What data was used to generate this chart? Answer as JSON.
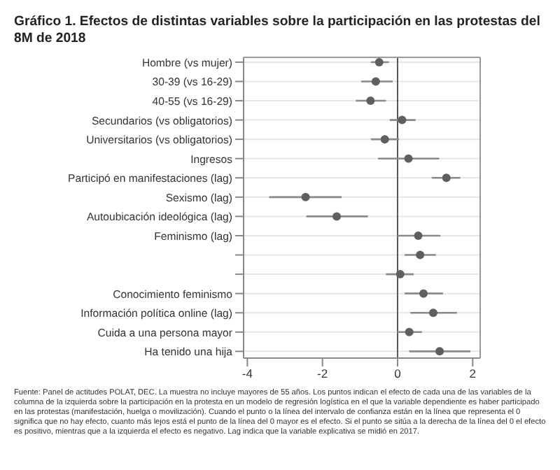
{
  "chart_data": {
    "type": "scatter",
    "title": "Gráfico 1. Efectos de distintas variables sobre la participación en las protestas del 8M de 2018",
    "orientation": "horizontal",
    "categories": [
      "Hombre (vs mujer)",
      "30-39 (vs 16-29)",
      "40-55 (vs 16-29)",
      "Secundarios (vs obligatorios)",
      "Universitarios (vs obligatorios)",
      "Ingresos",
      "Participó en manifestaciones (lag)",
      "Sexismo (lag)",
      "Autoubicación ideológica (lag)",
      "Feminismo (lag)",
      null,
      null,
      "Conocimiento feminismo",
      "Información política online (lag)",
      "Cuida a una persona mayor",
      "Ha tenido una hija"
    ],
    "series": [
      {
        "color": "#5f5f5f",
        "values": [
          -0.49,
          -0.58,
          -0.72,
          0.12,
          -0.34,
          0.29,
          1.3,
          -2.45,
          -1.62,
          0.55,
          0.6,
          0.07,
          0.69,
          0.95,
          0.31,
          1.12
        ],
        "errors": [
          [
            -0.71,
            -0.23
          ],
          [
            -0.97,
            -0.13
          ],
          [
            -1.11,
            -0.31
          ],
          [
            -0.21,
            0.48
          ],
          [
            -0.71,
            0.04
          ],
          [
            -0.52,
            1.11
          ],
          [
            0.91,
            1.67
          ],
          [
            -3.42,
            -1.49
          ],
          [
            -2.43,
            -0.79
          ],
          [
            -0.01,
            1.14
          ],
          [
            0.19,
            1.02
          ],
          [
            -0.31,
            0.43
          ],
          [
            0.19,
            1.21
          ],
          [
            0.34,
            1.58
          ],
          [
            -0.01,
            0.65
          ],
          [
            0.31,
            1.94
          ]
        ]
      }
    ],
    "xlim": [
      -4.1,
      2.2
    ],
    "xticks": [
      -4,
      -2,
      0,
      2
    ],
    "grid": "y",
    "marker": "circle",
    "ref_lines": [
      {
        "axis": "x",
        "value": 0,
        "color": "#555555"
      }
    ],
    "annotations": [
      "Fuente: Panel de actitudes POLAT, DEC. La muestra no incluye mayores de 55 años. Los puntos indican el efecto de cada una de las variables de la columna de la izquierda sobre la participación en la protesta en un modelo de regresión logística en el que la variable dependiente es haber participado en las protestas (manifestación, huelga o movilización). Cuando el punto o la línea del intervalo de confianza están en la línea que representa el 0 significa que no hay efecto, cuanto más lejos está el punto de la línea del 0 mayor es el efecto. Si el punto se sitúa a la derecha de la línea del 0 el efecto es positivo, mientras que a la izquierda el efecto es negativo. Lag indica que la variable explicativa se midió en 2017."
    ]
  }
}
